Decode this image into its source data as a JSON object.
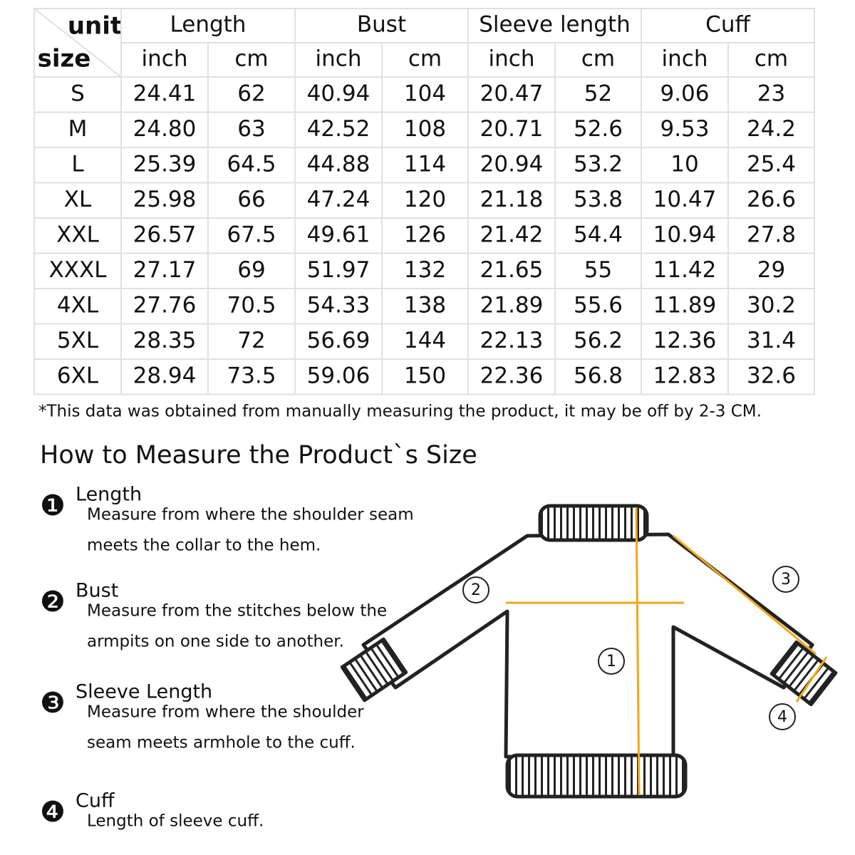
{
  "table": {
    "corner": {
      "unit": "unit",
      "size": "size"
    },
    "groups": [
      "Length",
      "Bust",
      "Sleeve length",
      "Cuff"
    ],
    "units": [
      "inch",
      "cm",
      "inch",
      "cm",
      "inch",
      "cm",
      "inch",
      "cm"
    ],
    "rows": [
      [
        "S",
        "24.41",
        "62",
        "40.94",
        "104",
        "20.47",
        "52",
        "9.06",
        "23"
      ],
      [
        "M",
        "24.80",
        "63",
        "42.52",
        "108",
        "20.71",
        "52.6",
        "9.53",
        "24.2"
      ],
      [
        "L",
        "25.39",
        "64.5",
        "44.88",
        "114",
        "20.94",
        "53.2",
        "10",
        "25.4"
      ],
      [
        "XL",
        "25.98",
        "66",
        "47.24",
        "120",
        "21.18",
        "53.8",
        "10.47",
        "26.6"
      ],
      [
        "XXL",
        "26.57",
        "67.5",
        "49.61",
        "126",
        "21.42",
        "54.4",
        "10.94",
        "27.8"
      ],
      [
        "XXXL",
        "27.17",
        "69",
        "51.97",
        "132",
        "21.65",
        "55",
        "11.42",
        "29"
      ],
      [
        "4XL",
        "27.76",
        "70.5",
        "54.33",
        "138",
        "21.89",
        "55.6",
        "11.89",
        "30.2"
      ],
      [
        "5XL",
        "28.35",
        "72",
        "56.69",
        "144",
        "22.13",
        "56.2",
        "12.36",
        "31.4"
      ],
      [
        "6XL",
        "28.94",
        "73.5",
        "59.06",
        "150",
        "22.36",
        "56.8",
        "12.83",
        "32.6"
      ]
    ]
  },
  "note": "*This data was obtained from manually measuring the product, it may be off by 2-3 CM.",
  "guide": {
    "title": "How to Measure the Product`s Size",
    "steps": [
      {
        "marker": "❶",
        "title": "Length",
        "lines": [
          "Measure from where the shoulder seam",
          "meets the collar to the hem."
        ]
      },
      {
        "marker": "❷",
        "title": "Bust",
        "lines": [
          "Measure from the stitches below the",
          "armpits on one side to another."
        ]
      },
      {
        "marker": "❸",
        "title": "Sleeve Length",
        "lines": [
          "Measure from where the shoulder",
          "seam meets armhole to the cuff."
        ]
      },
      {
        "marker": "❹",
        "title": "Cuff",
        "lines": [
          "Length of sleeve cuff."
        ]
      }
    ]
  },
  "diagram": {
    "labels": [
      "1",
      "2",
      "3",
      "4"
    ]
  }
}
